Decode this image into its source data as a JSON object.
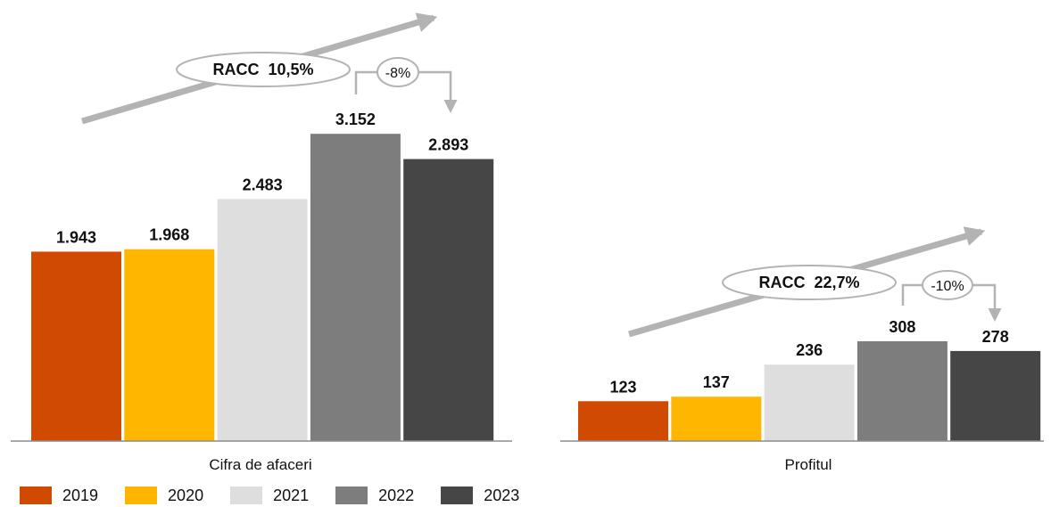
{
  "chart_data": [
    {
      "type": "bar",
      "categories": [
        "2019",
        "2020",
        "2021",
        "2022",
        "2023"
      ],
      "values": [
        1943,
        1968,
        2483,
        3152,
        2893
      ],
      "value_labels": [
        "1.943",
        "1.968",
        "2.483",
        "3.152",
        "2.893"
      ],
      "xlabel": "Cifra de afaceri",
      "cagr_label": "RACC  10,5%",
      "change_label": "-8%"
    },
    {
      "type": "bar",
      "categories": [
        "2019",
        "2020",
        "2021",
        "2022",
        "2023"
      ],
      "values": [
        123,
        137,
        236,
        308,
        278
      ],
      "value_labels": [
        "123",
        "137",
        "236",
        "308",
        "278"
      ],
      "xlabel": "Profitul",
      "cagr_label": "RACC  22,7%",
      "change_label": "-10%"
    }
  ],
  "legend": [
    {
      "label": "2019",
      "color": "#D04A02"
    },
    {
      "label": "2020",
      "color": "#FFB600"
    },
    {
      "label": "2021",
      "color": "#DEDEDE"
    },
    {
      "label": "2022",
      "color": "#7D7D7D"
    },
    {
      "label": "2023",
      "color": "#464646"
    }
  ],
  "colors": {
    "arrow": "#B3B3B3",
    "axis": "#8C8C8C",
    "text": "#111111"
  }
}
